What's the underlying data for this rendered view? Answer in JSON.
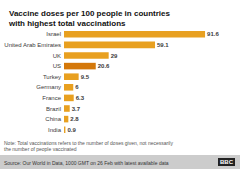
{
  "chart_data": {
    "type": "bar",
    "orientation": "horizontal",
    "title": "Vaccine doses per 100 people in countries\nwith highest total vaccinations",
    "categories": [
      "India",
      "China",
      "Brazil",
      "France",
      "Germany",
      "Turkey",
      "US",
      "UK",
      "United Arab Emirates",
      "Israel"
    ],
    "values": [
      0.9,
      2.8,
      3.7,
      6.3,
      6.0,
      9.5,
      20.6,
      29,
      59.1,
      91.6
    ],
    "colors": [
      "#E8A020",
      "#E8A020",
      "#E8A020",
      "#E8A020",
      "#E8A020",
      "#E8A020",
      "#D4780A",
      "#E8A020",
      "#E8A020",
      "#E8A020"
    ],
    "xlim": [
      0,
      100
    ],
    "data_labels": true,
    "tick_labels": "y",
    "grid": false,
    "annotations": [
      "Note: Total vaccinations refers to the number of doses given, not necessarily\nthe number of people vaccinated",
      "Source: Our World in Data, 1000 GMT on 26 Feb with latest available data",
      "BBC"
    ]
  }
}
